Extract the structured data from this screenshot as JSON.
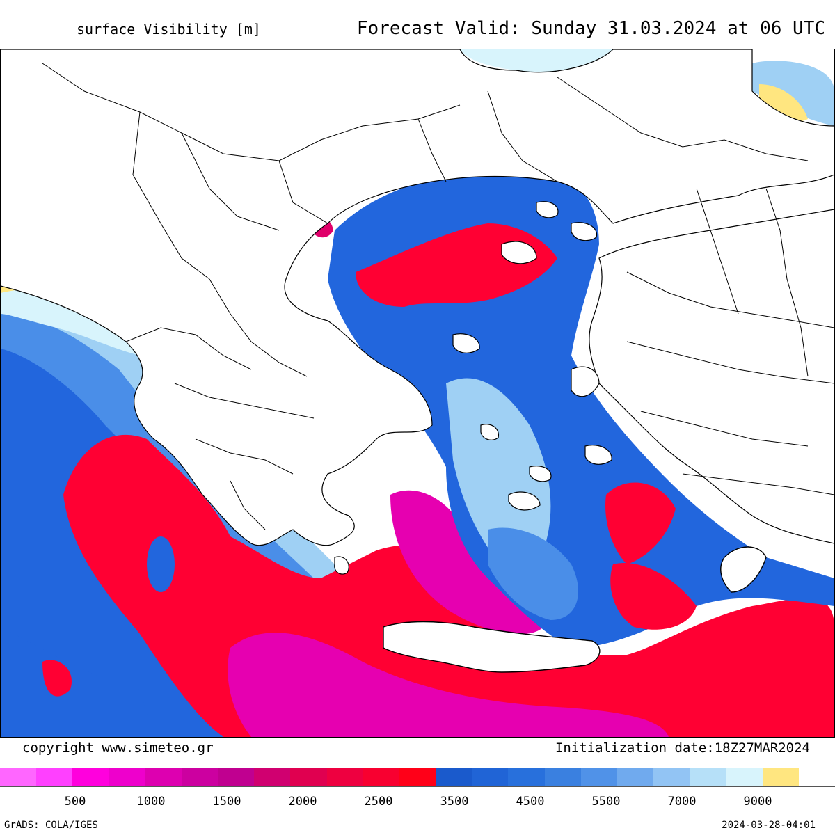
{
  "header": {
    "variable_title": "surface Visibility [m]",
    "forecast_valid": "Forecast Valid:  Sunday 31.03.2024 at 06 UTC"
  },
  "footer": {
    "copyright": "copyright www.simeteo.gr",
    "initialization": "Initialization date:18Z27MAR2024",
    "grads": "GrADS: COLA/IGES",
    "timestamp": "2024-03-28-04:01"
  },
  "legend": {
    "colors": [
      "#ff66ff",
      "#ff40ff",
      "#ff00dd",
      "#ee00cc",
      "#dd00b0",
      "#cc00a0",
      "#c00090",
      "#d00070",
      "#e00050",
      "#ee0040",
      "#f80030",
      "#ff0018",
      "#1a5acc",
      "#2064d6",
      "#2870dc",
      "#3a80e0",
      "#5092e8",
      "#70aaee",
      "#92c4f4",
      "#b6e0f8",
      "#d8f4fc",
      "#ffe680",
      "#ffffff"
    ],
    "tick_labels": [
      "500",
      "1000",
      "1500",
      "2000",
      "2500",
      "3500",
      "4500",
      "5500",
      "7000",
      "9000"
    ]
  },
  "map": {
    "field_colors": {
      "low_visibility": "#ff0033",
      "very_low": "#e600b0",
      "moderate": "#2266dd",
      "medium": "#4a8ee8",
      "high": "#9fd0f4",
      "near_clear": "#ffe680",
      "land": "#ffffff"
    }
  }
}
